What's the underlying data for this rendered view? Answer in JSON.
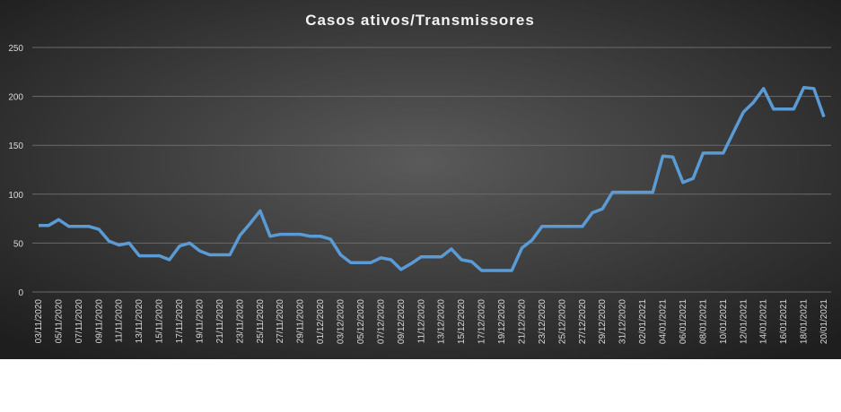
{
  "chart_data": {
    "type": "line",
    "title": "Casos ativos/Transmissores",
    "categories": [
      "03/11/2020",
      null,
      "05/11/2020",
      null,
      "07/11/2020",
      null,
      "09/11/2020",
      null,
      "11/11/2020",
      null,
      "13/11/2020",
      null,
      "15/11/2020",
      null,
      "17/11/2020",
      null,
      "19/11/2020",
      null,
      "21/11/2020",
      null,
      "23/11/2020",
      null,
      "25/11/2020",
      null,
      "27/11/2020",
      null,
      "29/11/2020",
      null,
      "01/12/2020",
      null,
      "03/12/2020",
      null,
      "05/12/2020",
      null,
      "07/12/2020",
      null,
      "09/12/2020",
      null,
      "11/12/2020",
      null,
      "13/12/2020",
      null,
      "15/12/2020",
      null,
      "17/12/2020",
      null,
      "19/12/2020",
      null,
      "21/12/2020",
      null,
      "23/12/2020",
      null,
      "25/12/2020",
      null,
      "27/12/2020",
      null,
      "29/12/2020",
      null,
      "31/12/2020",
      null,
      "02/01/2021",
      null,
      "04/01/2021",
      null,
      "06/01/2021",
      null,
      "08/01/2021",
      null,
      "10/01/2021",
      null,
      "12/01/2021",
      null,
      "14/01/2021",
      null,
      "16/01/2021",
      null,
      "18/01/2021",
      null,
      "20/01/2021"
    ],
    "series": [
      {
        "name": "Casos ativos",
        "color": "#5b9bd5",
        "values": [
          68,
          68,
          74,
          67,
          67,
          67,
          64,
          52,
          48,
          50,
          37,
          37,
          37,
          33,
          47,
          50,
          42,
          38,
          38,
          38,
          58,
          70,
          83,
          57,
          59,
          59,
          59,
          57,
          57,
          54,
          38,
          30,
          30,
          30,
          35,
          33,
          23,
          29,
          36,
          36,
          36,
          44,
          33,
          31,
          22,
          22,
          22,
          22,
          45,
          53,
          67,
          67,
          67,
          67,
          67,
          81,
          85,
          102,
          102,
          102,
          102,
          102,
          139,
          138,
          112,
          116,
          142,
          142,
          142,
          163,
          184,
          194,
          208,
          187,
          187,
          187,
          209,
          208,
          179
        ]
      }
    ],
    "ylim": [
      0,
      250
    ],
    "yticks": [
      0,
      50,
      100,
      150,
      200,
      250
    ],
    "grid": true
  }
}
